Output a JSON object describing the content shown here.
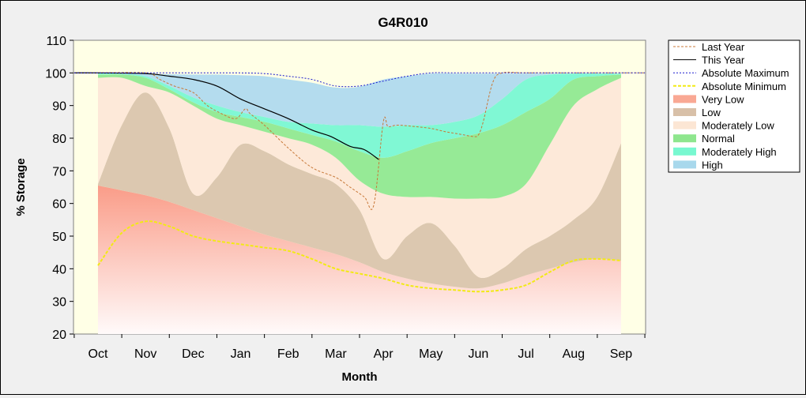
{
  "chart_data": {
    "type": "area",
    "title": "G4R010",
    "xlabel": "Month",
    "ylabel": "% Storage",
    "ylim": [
      20,
      110
    ],
    "yticks": [
      20,
      30,
      40,
      50,
      60,
      70,
      80,
      90,
      100,
      110
    ],
    "x_axis": "months Oct through Sep",
    "categories": [
      "Oct",
      "Nov",
      "Dec",
      "Jan",
      "Feb",
      "Mar",
      "Apr",
      "May",
      "Jun",
      "Jul",
      "Aug",
      "Sep"
    ],
    "grid": false,
    "legend_position": "right",
    "band_months": [
      0,
      0.5,
      1,
      1.5,
      2,
      2.5,
      3,
      3.5,
      4,
      4.5,
      5,
      5.5,
      6,
      6.5,
      7,
      7.5,
      8,
      8.5,
      9,
      9.5,
      10,
      10.5,
      11
    ],
    "bands": {
      "very_low_top": [
        65.5,
        64,
        62.5,
        60.5,
        58,
        55.5,
        53,
        50.5,
        48.5,
        46.5,
        44.5,
        42,
        39,
        37,
        35.5,
        34.5,
        34,
        35.5,
        38,
        40,
        42,
        43,
        42.5
      ],
      "low_top": [
        66,
        84,
        94,
        83,
        63,
        68,
        78,
        76,
        72,
        69,
        66,
        58,
        43,
        50,
        54,
        47,
        37.5,
        40,
        46,
        50,
        55,
        62,
        78.5
      ],
      "moderately_low_top": [
        98.5,
        98.5,
        96,
        94,
        90,
        86,
        84,
        82,
        80,
        78,
        74,
        67,
        63,
        62,
        62,
        61.5,
        61.5,
        62,
        66,
        78,
        90,
        95,
        98.5
      ],
      "normal_top": [
        99.5,
        99.5,
        98.5,
        95,
        91,
        88,
        86.5,
        85,
        83,
        81,
        79,
        76,
        74,
        76,
        78.5,
        80,
        81.5,
        84,
        88,
        92,
        98,
        99,
        99.5
      ],
      "moderately_high_top": [
        99.8,
        99.7,
        99,
        96,
        92.5,
        90,
        88,
        86.5,
        85,
        84.5,
        84,
        84,
        83.5,
        84,
        84,
        85,
        87,
        92,
        98,
        99.5,
        99.8,
        99.8,
        99.8
      ],
      "high_top": [
        99.8,
        99.8,
        99.8,
        99.6,
        99.5,
        99.5,
        99.3,
        99,
        98,
        97,
        95.5,
        95.8,
        98,
        99,
        99.8,
        99.8,
        99.8,
        99.8,
        99.8,
        99.8,
        99.8,
        99.8,
        99.8
      ]
    },
    "series": [
      {
        "name": "Last Year",
        "color": "#c87838",
        "x": [
          -0.5,
          0,
          1,
          1.3,
          1.6,
          2,
          2.3,
          2.6,
          2.9,
          3.1,
          3.2,
          3.5,
          4,
          4.5,
          5,
          5.3,
          5.6,
          5.8,
          6.0,
          6.1,
          6.3,
          6.7,
          7,
          7.3,
          7.5,
          7.7,
          7.9,
          8.0,
          8.1,
          8.3,
          8.5,
          9,
          10,
          11,
          11.5
        ],
        "y": [
          100,
          100,
          100,
          98,
          96,
          94,
          90,
          87.5,
          86,
          89,
          87.5,
          84,
          77,
          71,
          68,
          65,
          62,
          59.5,
          85,
          83.5,
          84,
          83.5,
          83,
          82,
          81.5,
          81,
          80.5,
          81,
          85,
          97,
          100,
          100,
          100,
          100,
          100
        ]
      },
      {
        "name": "This Year",
        "color": "#000000",
        "x": [
          -0.5,
          0,
          1,
          1.5,
          2,
          2.5,
          3,
          3.5,
          4,
          4.5,
          4.9,
          5.3,
          5.6,
          5.9
        ],
        "y": [
          100,
          100,
          99.8,
          99,
          98,
          96,
          92,
          89,
          86,
          82.5,
          80.5,
          77.5,
          76.5,
          73.5
        ]
      },
      {
        "name": "Absolute Maximum",
        "color": "#1a1acd",
        "x": [
          -0.5,
          0,
          1,
          2,
          3,
          3.5,
          4,
          4.5,
          5,
          5.5,
          6,
          6.5,
          7,
          7.5,
          8,
          9,
          10,
          11,
          11.5
        ],
        "y": [
          100,
          100,
          100,
          100,
          100,
          99.8,
          99,
          98,
          96,
          96,
          97.5,
          99,
          100,
          100,
          100,
          100,
          100,
          100,
          100
        ]
      },
      {
        "name": "Absolute Minimum",
        "color": "#f2ea14",
        "x": [
          0,
          0.5,
          1,
          1.5,
          2,
          2.5,
          3,
          3.5,
          4,
          4.5,
          5,
          5.5,
          6,
          6.5,
          7,
          7.5,
          8,
          8.5,
          9,
          9.5,
          10,
          10.5,
          11
        ],
        "y": [
          41,
          51,
          54.5,
          53,
          50,
          48.5,
          47.5,
          46.5,
          45.5,
          43,
          40,
          38.5,
          37,
          35,
          34,
          33.5,
          33,
          33.5,
          35,
          39,
          42.5,
          43,
          42.5
        ]
      }
    ],
    "legend": [
      {
        "label": "Last Year",
        "kind": "line",
        "color": "#c87838",
        "dash": "3,2"
      },
      {
        "label": "This Year",
        "kind": "line",
        "color": "#000000",
        "dash": ""
      },
      {
        "label": "Absolute Maximum",
        "kind": "line",
        "color": "#1a1acd",
        "dash": "2,2"
      },
      {
        "label": "Absolute Minimum",
        "kind": "line",
        "color": "#f2ea14",
        "dash": "4,2"
      },
      {
        "label": "Very Low",
        "kind": "swatch",
        "color": "#f9a894"
      },
      {
        "label": "Low",
        "kind": "swatch",
        "color": "#d8c0a8"
      },
      {
        "label": "Moderately Low",
        "kind": "swatch",
        "color": "#fce6d4"
      },
      {
        "label": "Normal",
        "kind": "swatch",
        "color": "#8ee68e"
      },
      {
        "label": "Moderately High",
        "kind": "swatch",
        "color": "#78f8d0"
      },
      {
        "label": "High",
        "kind": "swatch",
        "color": "#a8d8ec"
      }
    ],
    "colors": {
      "plot_background": "#ffffe6",
      "very_low": "#f9a894",
      "low": "#dcc8b0",
      "moderately_low": "#fde9d9",
      "normal": "#96ea96",
      "moderately_high": "#80f8d4",
      "high": "#b4dcee"
    }
  }
}
